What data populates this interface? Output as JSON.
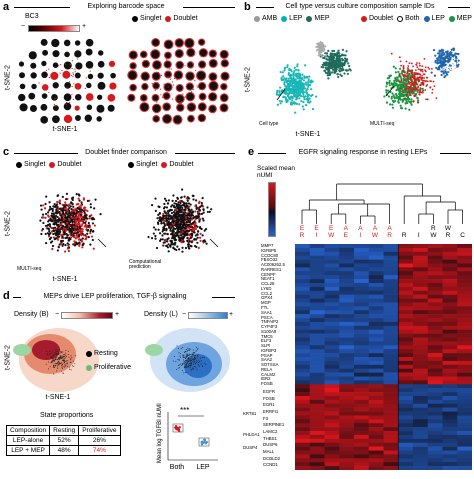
{
  "panel_a": {
    "letter": "a",
    "title": "Exploring barcode space",
    "colorbar_label": "BC3",
    "colorbar_minus": "−",
    "colorbar_plus": "+",
    "legend": [
      {
        "label": "Singlet",
        "color": "#000000"
      },
      {
        "label": "Doublet",
        "color": "#d7191c"
      }
    ],
    "xlabel": "t-SNE-1",
    "ylabel": "t-SNE-2"
  },
  "panel_b": {
    "letter": "b",
    "title": "Cell type versus culture composition sample IDs",
    "legend_left": [
      {
        "label": "AMB",
        "color": "#999999"
      },
      {
        "label": "LEP",
        "color": "#00b3b3"
      },
      {
        "label": "MEP",
        "color": "#1f6b5c"
      }
    ],
    "legend_right": [
      {
        "label": "Doublet",
        "color": "#d7191c"
      },
      {
        "label": "Both",
        "color": "#ffffff"
      },
      {
        "label": "LEP",
        "color": "#2166ac"
      },
      {
        "label": "MEP",
        "color": "#1a9641"
      }
    ],
    "inset_left": "Cell type",
    "inset_right": "MULTI-seq",
    "xlabel": "t-SNE-1",
    "ylabel": "t-SNE-2"
  },
  "panel_c": {
    "letter": "c",
    "title": "Doublet finder comparison",
    "legend_left": [
      {
        "label": "Singlet",
        "color": "#000000"
      },
      {
        "label": "Doublet",
        "color": "#d7191c"
      }
    ],
    "legend_right": [
      {
        "label": "Singlet",
        "color": "#000000"
      },
      {
        "label": "Doublet",
        "color": "#d7191c"
      }
    ],
    "inset_left": "MULTI-seq",
    "inset_right": "Computational prediction",
    "xlabel": "t-SNE-1",
    "ylabel": "t-SNE-2"
  },
  "panel_d": {
    "letter": "d",
    "title": "MEPs drive LEP proliferation, TGF-β signaling",
    "density_b": "Density (B)",
    "density_l": "Density (L)",
    "minus": "−",
    "plus": "+",
    "legend": [
      {
        "label": "Resting",
        "color": "#000000"
      },
      {
        "label": "Proliferative",
        "color": "#66bb77"
      }
    ],
    "xlabel": "t-SNE-1",
    "ylabel": "t-SNE-2",
    "table_title": "State proportions",
    "table_header": [
      "Composition",
      "Resting",
      "Proliferative"
    ],
    "table_rows": [
      {
        "composition": "LEP-alone",
        "resting": "52%",
        "proliferative": "26%"
      },
      {
        "composition": "LEP + MEP",
        "resting": "48%",
        "proliferative": "74%"
      }
    ],
    "highlight_color": "#d7191c",
    "boxplot_ylabel": "Mean log TGFBI nUMI",
    "boxplot_significance": "***",
    "boxplot_categories": [
      "Both",
      "LEP"
    ],
    "boxplot_colors": [
      "#d7191c",
      "#4a90d9"
    ]
  },
  "panel_e": {
    "letter": "e",
    "title": "EGFR signaling response in resting LEPs",
    "scale_label": "Scaled mean nUMI",
    "col_labels": [
      {
        "top": "E",
        "bottom": "R",
        "color": "#d7191c"
      },
      {
        "top": "E",
        "bottom": "I",
        "color": "#d7191c"
      },
      {
        "top": "E",
        "bottom": "W",
        "color": "#d7191c"
      },
      {
        "top": "A",
        "bottom": "E",
        "color": "#d7191c"
      },
      {
        "top": "A",
        "bottom": "I",
        "color": "#d7191c"
      },
      {
        "top": "A",
        "bottom": "W",
        "color": "#d7191c"
      },
      {
        "top": "A",
        "bottom": "R",
        "color": "#d7191c"
      },
      {
        "top": "",
        "bottom": "R",
        "color": "#000000"
      },
      {
        "top": "",
        "bottom": "I",
        "color": "#000000"
      },
      {
        "top": "R",
        "bottom": "W",
        "color": "#000000"
      },
      {
        "top": "W",
        "bottom": "R",
        "color": "#000000"
      },
      {
        "top": "",
        "bottom": "C",
        "color": "#000000"
      }
    ],
    "genes_top": [
      "MMP7",
      "IGFBP5",
      "CCDC80",
      "FBXO32",
      "AC006262.5",
      "RARRES1",
      "CENPF",
      "NEAT1",
      "CCL28",
      "LY6D",
      "CCL2",
      "GPX4",
      "MGP",
      "FTL",
      "SAA1",
      "PSCA",
      "TNFAIP2",
      "CYP4F3",
      "S100A9",
      "TMC5",
      "ELF3",
      "SLPI",
      "IGFBP3",
      "PSAP",
      "SAA2",
      "SOTSSA",
      "RELA",
      "CALM2",
      "IER2",
      "FOSB",
      "EGR1",
      "SERPINB1",
      "DUSP6",
      "LAMC2",
      "CCND1",
      "MALL",
      "DCBLD2",
      "CCND1"
    ],
    "genes_bottom": [
      "EGFR",
      "FOSB",
      "EGR1",
      "ERRFI1",
      "F3",
      "SERPINE1",
      "LAMC2",
      "THBS1",
      "DUSP6",
      "MALL",
      "DCBLD2",
      "CCND1"
    ],
    "left_labels": [
      "KRT81",
      "PHLDA1",
      "DUSP4"
    ]
  }
}
